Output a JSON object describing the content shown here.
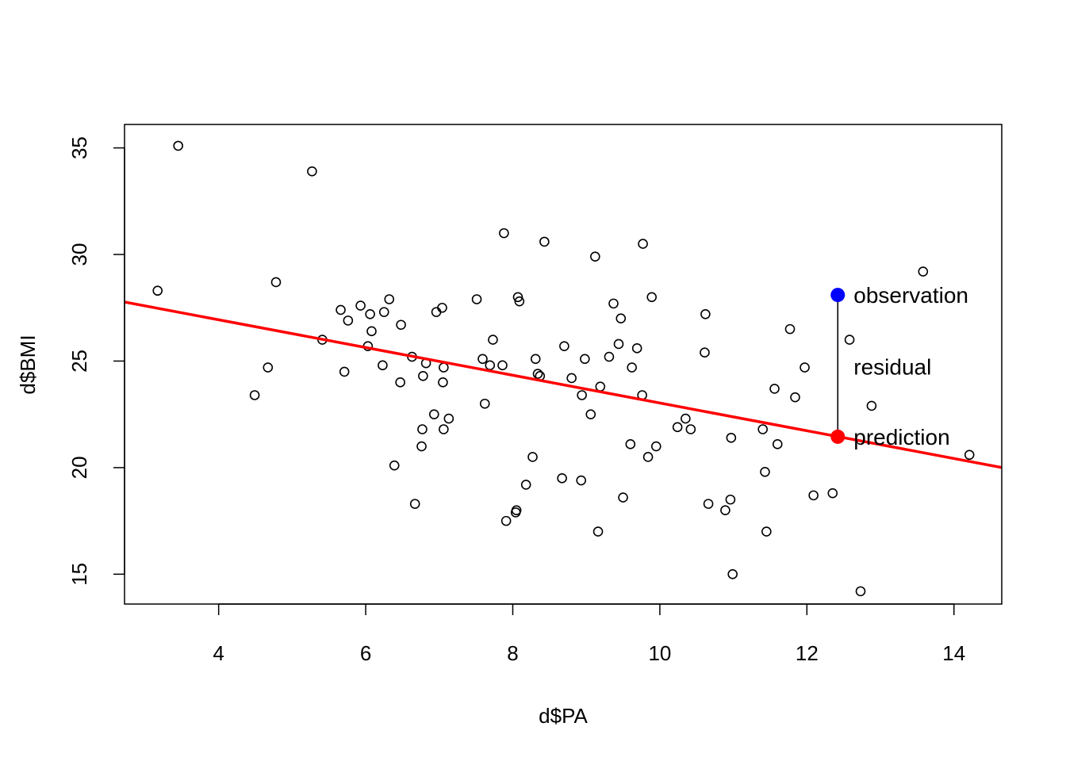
{
  "chart_data": {
    "type": "scatter",
    "title": "",
    "xlabel": "d$PA",
    "ylabel": "d$BMI",
    "xlim": [
      2.72,
      14.65
    ],
    "ylim": [
      13.6,
      36.1
    ],
    "xticks": [
      4,
      6,
      8,
      10,
      12,
      14
    ],
    "yticks": [
      15,
      20,
      25,
      30,
      35
    ],
    "grid": false,
    "legend": "none",
    "points": [
      [
        3.17,
        28.3
      ],
      [
        3.45,
        35.1
      ],
      [
        4.49,
        23.4
      ],
      [
        4.67,
        24.7
      ],
      [
        4.78,
        28.7
      ],
      [
        5.27,
        33.9
      ],
      [
        5.41,
        26.0
      ],
      [
        5.66,
        27.4
      ],
      [
        5.71,
        24.5
      ],
      [
        5.76,
        26.9
      ],
      [
        5.93,
        27.6
      ],
      [
        6.03,
        25.7
      ],
      [
        6.06,
        27.2
      ],
      [
        6.08,
        26.4
      ],
      [
        6.23,
        24.8
      ],
      [
        6.25,
        27.3
      ],
      [
        6.32,
        27.9
      ],
      [
        6.39,
        20.1
      ],
      [
        6.47,
        24.0
      ],
      [
        6.48,
        26.7
      ],
      [
        6.63,
        25.2
      ],
      [
        6.67,
        18.3
      ],
      [
        6.76,
        21.0
      ],
      [
        6.77,
        21.8
      ],
      [
        6.78,
        24.3
      ],
      [
        6.82,
        24.9
      ],
      [
        6.93,
        22.5
      ],
      [
        6.96,
        27.3
      ],
      [
        7.04,
        27.5
      ],
      [
        7.05,
        24.0
      ],
      [
        7.06,
        24.7
      ],
      [
        7.06,
        21.8
      ],
      [
        7.13,
        22.3
      ],
      [
        7.51,
        27.9
      ],
      [
        7.59,
        25.1
      ],
      [
        7.62,
        23.0
      ],
      [
        7.69,
        24.8
      ],
      [
        7.73,
        26.0
      ],
      [
        7.86,
        24.8
      ],
      [
        7.88,
        31.0
      ],
      [
        7.91,
        17.5
      ],
      [
        8.04,
        17.9
      ],
      [
        8.05,
        18.0
      ],
      [
        8.07,
        28.0
      ],
      [
        8.09,
        27.8
      ],
      [
        8.18,
        19.2
      ],
      [
        8.27,
        20.5
      ],
      [
        8.31,
        25.1
      ],
      [
        8.34,
        24.4
      ],
      [
        8.37,
        24.3
      ],
      [
        8.43,
        30.6
      ],
      [
        8.67,
        19.5
      ],
      [
        8.7,
        25.7
      ],
      [
        8.8,
        24.2
      ],
      [
        8.93,
        19.4
      ],
      [
        8.94,
        23.4
      ],
      [
        8.98,
        25.1
      ],
      [
        9.06,
        22.5
      ],
      [
        9.12,
        29.9
      ],
      [
        9.16,
        17.0
      ],
      [
        9.19,
        23.8
      ],
      [
        9.31,
        25.2
      ],
      [
        9.37,
        27.7
      ],
      [
        9.44,
        25.8
      ],
      [
        9.47,
        27.0
      ],
      [
        9.5,
        18.6
      ],
      [
        9.6,
        21.1
      ],
      [
        9.62,
        24.7
      ],
      [
        9.69,
        25.6
      ],
      [
        9.76,
        23.4
      ],
      [
        9.77,
        30.5
      ],
      [
        9.84,
        20.5
      ],
      [
        9.89,
        28.0
      ],
      [
        9.95,
        21.0
      ],
      [
        10.24,
        21.9
      ],
      [
        10.35,
        22.3
      ],
      [
        10.42,
        21.8
      ],
      [
        10.61,
        25.4
      ],
      [
        10.62,
        27.2
      ],
      [
        10.66,
        18.3
      ],
      [
        10.89,
        18.0
      ],
      [
        10.96,
        18.5
      ],
      [
        10.97,
        21.4
      ],
      [
        10.99,
        15.0
      ],
      [
        11.4,
        21.8
      ],
      [
        11.43,
        19.8
      ],
      [
        11.45,
        17.0
      ],
      [
        11.56,
        23.7
      ],
      [
        11.6,
        21.1
      ],
      [
        11.77,
        26.5
      ],
      [
        11.84,
        23.3
      ],
      [
        11.97,
        24.7
      ],
      [
        12.09,
        18.7
      ],
      [
        12.35,
        18.8
      ],
      [
        12.58,
        26.0
      ],
      [
        12.73,
        14.2
      ],
      [
        12.88,
        22.9
      ],
      [
        13.58,
        29.2
      ],
      [
        14.21,
        20.6
      ]
    ],
    "regression_line": {
      "intercept": 29.54,
      "slope": -0.6508,
      "color": "#ff0000"
    },
    "highlight": {
      "x": 12.42,
      "observation": 28.1,
      "prediction": 21.45,
      "observation_color": "#0000ff",
      "prediction_color": "#ff0000"
    },
    "annotations": {
      "observation": "observation",
      "residual": "residual",
      "prediction": "prediction"
    }
  }
}
